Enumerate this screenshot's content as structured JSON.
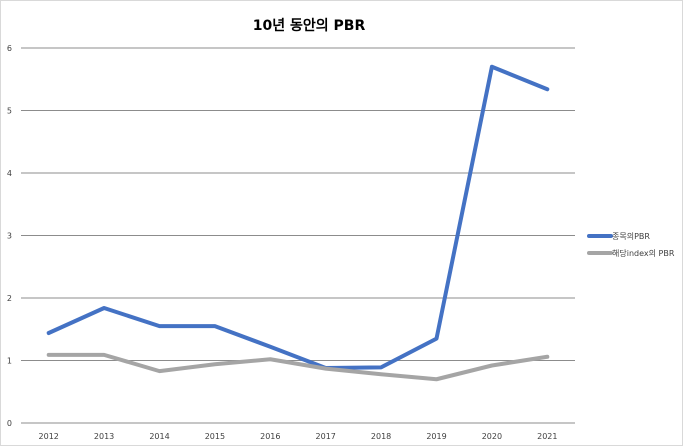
{
  "chart_data": {
    "type": "line",
    "title": "10년 동안의 PBR",
    "xlabel": "",
    "ylabel": "",
    "categories": [
      "2012",
      "2013",
      "2014",
      "2015",
      "2016",
      "2017",
      "2018",
      "2019",
      "2020",
      "2021"
    ],
    "ylim": [
      0,
      6
    ],
    "yticks": [
      "0",
      "1",
      "2",
      "3",
      "4",
      "5",
      "6"
    ],
    "grid": true,
    "legend_position": "right",
    "series": [
      {
        "name": "종목의PBR",
        "color": "#4472c4",
        "values": [
          1.44,
          1.84,
          1.55,
          1.55,
          1.22,
          0.88,
          0.89,
          1.35,
          5.7,
          5.34
        ]
      },
      {
        "name": "해당index의 PBR",
        "color": "#a5a5a5",
        "values": [
          1.09,
          1.09,
          0.83,
          0.94,
          1.02,
          0.87,
          0.78,
          0.7,
          0.92,
          1.06
        ]
      }
    ]
  }
}
